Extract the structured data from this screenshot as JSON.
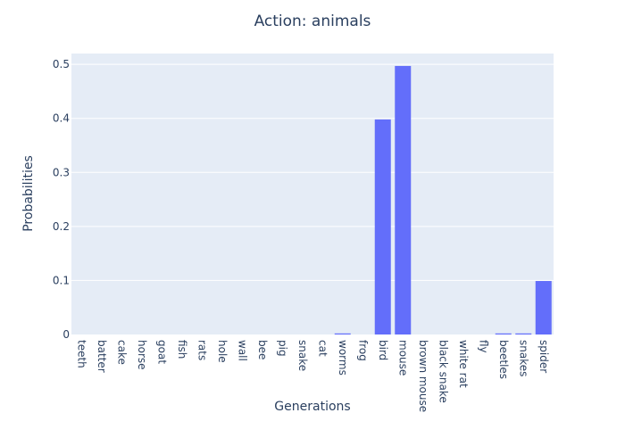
{
  "chart_data": {
    "type": "bar",
    "title": "Action: animals",
    "xlabel": "Generations",
    "ylabel": "Probabilities",
    "categories": [
      "teeth",
      "batter",
      "cake",
      "horse",
      "goat",
      "fish",
      "rats",
      "hole",
      "wall",
      "bee",
      "pig",
      "snake",
      "cat",
      "worms",
      "frog",
      "bird",
      "mouse",
      "brown mouse",
      "black snake",
      "white rat",
      "fly",
      "beetles",
      "snakes",
      "spider"
    ],
    "values": [
      0,
      0,
      0,
      0,
      0,
      0,
      0,
      0,
      0,
      0,
      0,
      0,
      0,
      0.002,
      0,
      0.398,
      0.497,
      0,
      0,
      0,
      0,
      0.002,
      0.002,
      0.099
    ],
    "ylim": [
      0,
      0.52
    ],
    "yticks": [
      0,
      0.1,
      0.2,
      0.3,
      0.4,
      0.5
    ],
    "ytick_labels": [
      "0",
      "0.1",
      "0.2",
      "0.3",
      "0.4",
      "0.5"
    ],
    "grid": true,
    "colors": {
      "bar": "#636efa",
      "plot_bg": "#e5ecf6",
      "text": "#2a3f5f"
    }
  }
}
